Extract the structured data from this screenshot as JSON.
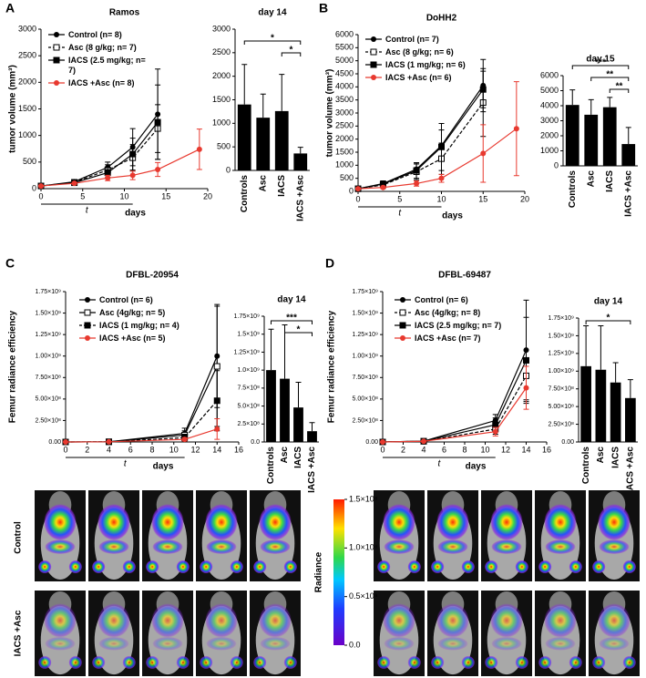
{
  "chart_data": [
    {
      "type": "line",
      "panel": "A",
      "title": "Ramos",
      "xlabel": "days",
      "ylabel": "tumor volume (mm³)",
      "x": [
        0,
        4,
        8,
        11,
        14,
        19
      ],
      "xlim": [
        0,
        20
      ],
      "xticks": [
        0,
        5,
        10,
        15,
        20
      ],
      "ylim": [
        0,
        3000
      ],
      "yticks": [
        0,
        500,
        1000,
        1500,
        2000,
        2500,
        3000
      ],
      "treatment_label": "t",
      "treatment_period": [
        0,
        11
      ],
      "legend": "upper left",
      "series": [
        {
          "name": "Control (n= 8)",
          "color": "#000000",
          "marker": "circle",
          "linestyle": "solid",
          "values": [
            50,
            130,
            400,
            780,
            1400,
            null
          ],
          "errors": [
            10,
            30,
            100,
            350,
            850,
            null
          ]
        },
        {
          "name": "Asc (8 g/kg; n= 7)",
          "color": "#000000",
          "marker": "square-open",
          "linestyle": "dashed",
          "values": [
            50,
            120,
            350,
            580,
            1130,
            null
          ],
          "errors": [
            10,
            30,
            100,
            250,
            450,
            null
          ]
        },
        {
          "name": "IACS (2.5 mg/kg; n= 7)",
          "color": "#000000",
          "marker": "square",
          "linestyle": "solid",
          "values": [
            50,
            110,
            300,
            650,
            1250,
            null
          ],
          "errors": [
            10,
            30,
            80,
            300,
            700,
            null
          ]
        },
        {
          "name": "IACS +Asc (n= 8)",
          "color": "#e8392f",
          "marker": "circle",
          "linestyle": "solid",
          "values": [
            50,
            100,
            200,
            250,
            360,
            740
          ],
          "errors": [
            10,
            20,
            50,
            80,
            130,
            380
          ]
        }
      ]
    },
    {
      "type": "bar",
      "title": "day 14",
      "categories": [
        "Controls",
        "Asc",
        "IACS",
        "IACS +Asc"
      ],
      "values": [
        1400,
        1120,
        1260,
        360
      ],
      "errors": [
        850,
        500,
        780,
        130
      ],
      "color": "#000000",
      "ylim": [
        0,
        3000
      ],
      "yticks": [
        0,
        500,
        1000,
        1500,
        2000,
        2500,
        3000
      ],
      "significance": [
        {
          "text": "*",
          "from": "Controls",
          "to": "IACS +Asc"
        },
        {
          "text": "*",
          "from": "IACS",
          "to": "IACS +Asc"
        }
      ]
    },
    {
      "type": "line",
      "panel": "B",
      "title": "DoHH2",
      "xlabel": "days",
      "ylabel": "tumor volume (mm³)",
      "x": [
        0,
        3,
        7,
        10,
        15,
        19
      ],
      "xlim": [
        0,
        20
      ],
      "xticks": [
        0,
        5,
        10,
        15,
        20
      ],
      "ylim": [
        0,
        6000
      ],
      "yticks": [
        0,
        500,
        1000,
        1500,
        2000,
        2500,
        3000,
        3500,
        4000,
        4500,
        5000,
        5500,
        6000
      ],
      "treatment_label": "t",
      "treatment_period": [
        0,
        10
      ],
      "legend": "upper left",
      "series": [
        {
          "name": "Control (n= 7)",
          "color": "#000000",
          "marker": "circle",
          "linestyle": "solid",
          "values": [
            100,
            300,
            850,
            1750,
            4050,
            null
          ],
          "errors": [
            40,
            100,
            200,
            600,
            1000,
            null
          ]
        },
        {
          "name": "Asc (8 g/kg; n= 6)",
          "color": "#000000",
          "marker": "square-open",
          "linestyle": "dashed",
          "values": [
            100,
            250,
            750,
            1250,
            3400,
            null
          ],
          "errors": [
            40,
            100,
            300,
            600,
            1300,
            null
          ]
        },
        {
          "name": "IACS (1 mg/kg; n= 6)",
          "color": "#000000",
          "marker": "square",
          "linestyle": "solid",
          "values": [
            100,
            280,
            800,
            1700,
            3900,
            null
          ],
          "errors": [
            40,
            100,
            300,
            900,
            700,
            null
          ]
        },
        {
          "name": "IACS +Asc (n= 6)",
          "color": "#e8392f",
          "marker": "circle",
          "linestyle": "solid",
          "values": [
            100,
            150,
            300,
            500,
            1450,
            2400
          ],
          "errors": [
            30,
            50,
            100,
            150,
            1100,
            1800
          ]
        }
      ]
    },
    {
      "type": "bar",
      "title": "day 15",
      "categories": [
        "Controls",
        "Asc",
        "IACS",
        "IACS +Asc"
      ],
      "values": [
        4050,
        3400,
        3900,
        1450
      ],
      "errors": [
        1000,
        1000,
        650,
        1100
      ],
      "color": "#000000",
      "ylim": [
        0,
        6000
      ],
      "yticks": [
        0,
        1000,
        2000,
        3000,
        4000,
        5000,
        6000
      ],
      "significance": [
        {
          "text": "***",
          "from": "Controls",
          "to": "IACS +Asc"
        },
        {
          "text": "**",
          "from": "Asc",
          "to": "IACS +Asc"
        },
        {
          "text": "**",
          "from": "IACS",
          "to": "IACS +Asc"
        }
      ]
    },
    {
      "type": "line",
      "panel": "C",
      "title": "DFBL-20954",
      "xlabel": "days",
      "ylabel": "Femur radiance efficiency",
      "x": [
        0,
        4,
        11,
        14
      ],
      "xlim": [
        0,
        16
      ],
      "xticks": [
        0,
        2,
        4,
        6,
        8,
        10,
        12,
        14,
        16
      ],
      "ylim": [
        0,
        1750000000
      ],
      "yticks": [
        {
          "value": 0,
          "label": "0.00"
        },
        {
          "value": 250000000,
          "label": "2.50×10⁸"
        },
        {
          "value": 500000000,
          "label": "5.00×10⁸"
        },
        {
          "value": 750000000,
          "label": "7.50×10⁸"
        },
        {
          "value": 1000000000,
          "label": "1.00×10⁹"
        },
        {
          "value": 1250000000,
          "label": "1.25×10⁹"
        },
        {
          "value": 1500000000,
          "label": "1.50×10⁹"
        },
        {
          "value": 1750000000,
          "label": "1.75×10⁹"
        }
      ],
      "treatment_label": "t",
      "treatment_period": [
        0,
        11
      ],
      "legend": "upper left",
      "series": [
        {
          "name": "Control (n= 6)",
          "color": "#000000",
          "marker": "circle",
          "linestyle": "solid",
          "values": [
            0,
            2000000,
            100000000,
            1000000000
          ],
          "errors": [
            0,
            2000000,
            60000000,
            600000000
          ]
        },
        {
          "name": "Asc (4g/kg; n= 5)",
          "color": "#000000",
          "marker": "square-open",
          "linestyle": "solid",
          "values": [
            0,
            2000000,
            80000000,
            880000000
          ],
          "errors": [
            0,
            2000000,
            50000000,
            700000000
          ]
        },
        {
          "name": "IACS (1 mg/kg; n= 4)",
          "color": "#000000",
          "marker": "square",
          "linestyle": "dashed",
          "values": [
            0,
            2000000,
            50000000,
            480000000
          ],
          "errors": [
            0,
            2000000,
            40000000,
            350000000
          ]
        },
        {
          "name": "IACS +Asc (n= 5)",
          "color": "#e8392f",
          "marker": "circle",
          "linestyle": "solid",
          "values": [
            0,
            2000000,
            30000000,
            150000000
          ],
          "errors": [
            0,
            1000000,
            20000000,
            120000000
          ]
        }
      ]
    },
    {
      "type": "bar",
      "title": "day 14",
      "categories": [
        "Controls",
        "Asc",
        "IACS",
        "IACS +Asc"
      ],
      "values": [
        1000000000,
        880000000,
        480000000,
        150000000
      ],
      "errors": [
        570000000,
        750000000,
        350000000,
        120000000
      ],
      "color": "#000000",
      "ylim": [
        0,
        1750000000
      ],
      "yticks": [
        {
          "value": 0,
          "label": "0.0"
        },
        {
          "value": 250000000,
          "label": "2.5×10⁸"
        },
        {
          "value": 500000000,
          "label": "5.0×10⁸"
        },
        {
          "value": 750000000,
          "label": "7.5×10⁸"
        },
        {
          "value": 1000000000,
          "label": "1.0×10⁹"
        },
        {
          "value": 1250000000,
          "label": "1.25×10⁹"
        },
        {
          "value": 1500000000,
          "label": "1.5×10⁹"
        },
        {
          "value": 1750000000,
          "label": "1.75×10⁹"
        }
      ],
      "significance": [
        {
          "text": "***",
          "from": "Controls",
          "to": "IACS +Asc"
        },
        {
          "text": "*",
          "from": "Asc",
          "to": "IACS +Asc"
        }
      ]
    },
    {
      "type": "line",
      "panel": "D",
      "title": "DFBL-69487",
      "xlabel": "days",
      "ylabel": "Femur radiance efficiency",
      "x": [
        0,
        4,
        11,
        14
      ],
      "xlim": [
        0,
        16
      ],
      "xticks": [
        0,
        2,
        4,
        6,
        8,
        10,
        12,
        14,
        16
      ],
      "ylim": [
        0,
        1750000000
      ],
      "yticks": [
        {
          "value": 0,
          "label": "0.00"
        },
        {
          "value": 250000000,
          "label": "2.50×10⁸"
        },
        {
          "value": 500000000,
          "label": "5.00×10⁸"
        },
        {
          "value": 750000000,
          "label": "7.50×10⁸"
        },
        {
          "value": 1000000000,
          "label": "1.00×10⁹"
        },
        {
          "value": 1250000000,
          "label": "1.25×10⁹"
        },
        {
          "value": 1500000000,
          "label": "1.50×10⁹"
        },
        {
          "value": 1750000000,
          "label": "1.75×10⁹"
        }
      ],
      "treatment_label": "t",
      "treatment_period": [
        0,
        11
      ],
      "legend": "upper left",
      "series": [
        {
          "name": "Control (n= 6)",
          "color": "#000000",
          "marker": "circle",
          "linestyle": "solid",
          "values": [
            0,
            10000000,
            250000000,
            1070000000
          ],
          "errors": [
            0,
            5000000,
            70000000,
            580000000
          ]
        },
        {
          "name": "Asc (4g/kg; n= 8)",
          "color": "#000000",
          "marker": "square-open",
          "linestyle": "dashed",
          "values": [
            0,
            8000000,
            150000000,
            770000000
          ],
          "errors": [
            0,
            5000000,
            60000000,
            300000000
          ]
        },
        {
          "name": "IACS (2.5 mg/kg; n= 7)",
          "color": "#000000",
          "marker": "square",
          "linestyle": "solid",
          "values": [
            0,
            9000000,
            200000000,
            950000000
          ],
          "errors": [
            0,
            5000000,
            80000000,
            500000000
          ]
        },
        {
          "name": "IACS +Asc (n= 7)",
          "color": "#e8392f",
          "marker": "circle",
          "linestyle": "solid",
          "values": [
            0,
            8000000,
            120000000,
            630000000
          ],
          "errors": [
            0,
            4000000,
            50000000,
            250000000
          ]
        }
      ]
    },
    {
      "type": "bar",
      "title": "day 14",
      "categories": [
        "Controls",
        "Asc",
        "IACS",
        "IACS +Asc"
      ],
      "values": [
        1070000000,
        1020000000,
        840000000,
        620000000
      ],
      "errors": [
        570000000,
        620000000,
        280000000,
        260000000
      ],
      "color": "#000000",
      "ylim": [
        0,
        1750000000
      ],
      "yticks": [
        {
          "value": 0,
          "label": "0.00"
        },
        {
          "value": 250000000,
          "label": "2.50×10⁸"
        },
        {
          "value": 500000000,
          "label": "5.00×10⁸"
        },
        {
          "value": 750000000,
          "label": "7.50×10⁸"
        },
        {
          "value": 1000000000,
          "label": "1.00×10⁹"
        },
        {
          "value": 1250000000,
          "label": "1.25×10⁹"
        },
        {
          "value": 1500000000,
          "label": "1.50×10⁹"
        },
        {
          "value": 1750000000,
          "label": "1.75×10⁹"
        }
      ],
      "significance": [
        {
          "text": "*",
          "from": "Controls",
          "to": "IACS +Asc"
        }
      ]
    }
  ],
  "imaging": {
    "rows": [
      "Control",
      "IACS +Asc"
    ],
    "colorbar": {
      "label": "Radiance",
      "lim": [
        0,
        150000000
      ],
      "ticks": [
        {
          "value": 0,
          "label": "0.0"
        },
        {
          "value": 50000000,
          "label": "0.5×10⁸"
        },
        {
          "value": 100000000,
          "label": "1.0×10⁸"
        },
        {
          "value": 150000000,
          "label": "1.5×10⁸"
        }
      ]
    }
  }
}
